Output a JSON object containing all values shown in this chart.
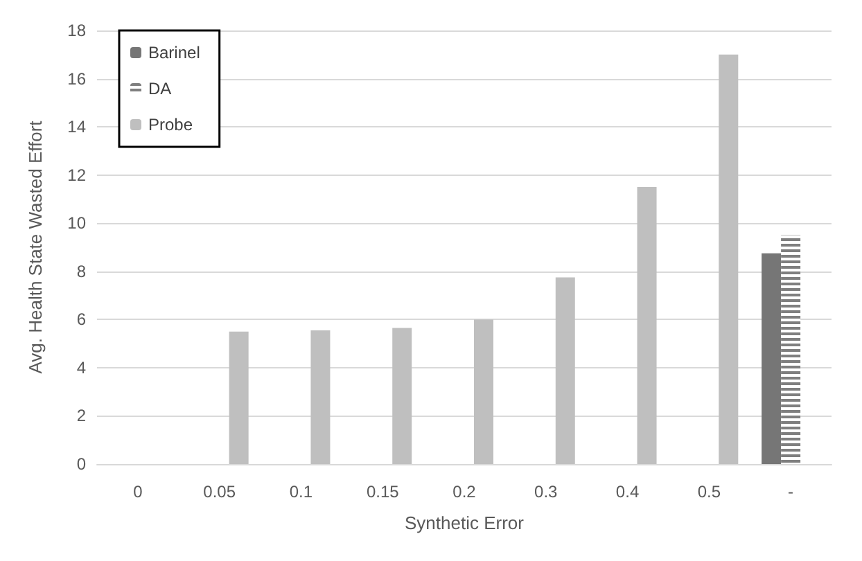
{
  "chart_data": {
    "type": "bar",
    "xlabel": "Synthetic Error",
    "ylabel": "Avg. Health State Wasted Effort",
    "categories": [
      "0",
      "0.05",
      "0.1",
      "0.15",
      "0.2",
      "0.3",
      "0.4",
      "0.5",
      "-"
    ],
    "series": [
      {
        "name": "Barinel",
        "color": "#767676",
        "values": [
          null,
          null,
          null,
          null,
          null,
          null,
          null,
          null,
          8.75
        ]
      },
      {
        "name": "DA",
        "color": "#7f7f7f",
        "values": [
          null,
          null,
          null,
          null,
          null,
          null,
          null,
          null,
          9.5
        ]
      },
      {
        "name": "Probe",
        "color": "#bfbfbf",
        "values": [
          0,
          5.5,
          5.55,
          5.65,
          6.0,
          7.75,
          11.5,
          17.0,
          null
        ]
      }
    ],
    "ylim": [
      0,
      18
    ],
    "yticks": [
      0,
      2,
      4,
      6,
      8,
      10,
      12,
      14,
      16,
      18
    ],
    "grid": "y",
    "legend": "top left"
  }
}
